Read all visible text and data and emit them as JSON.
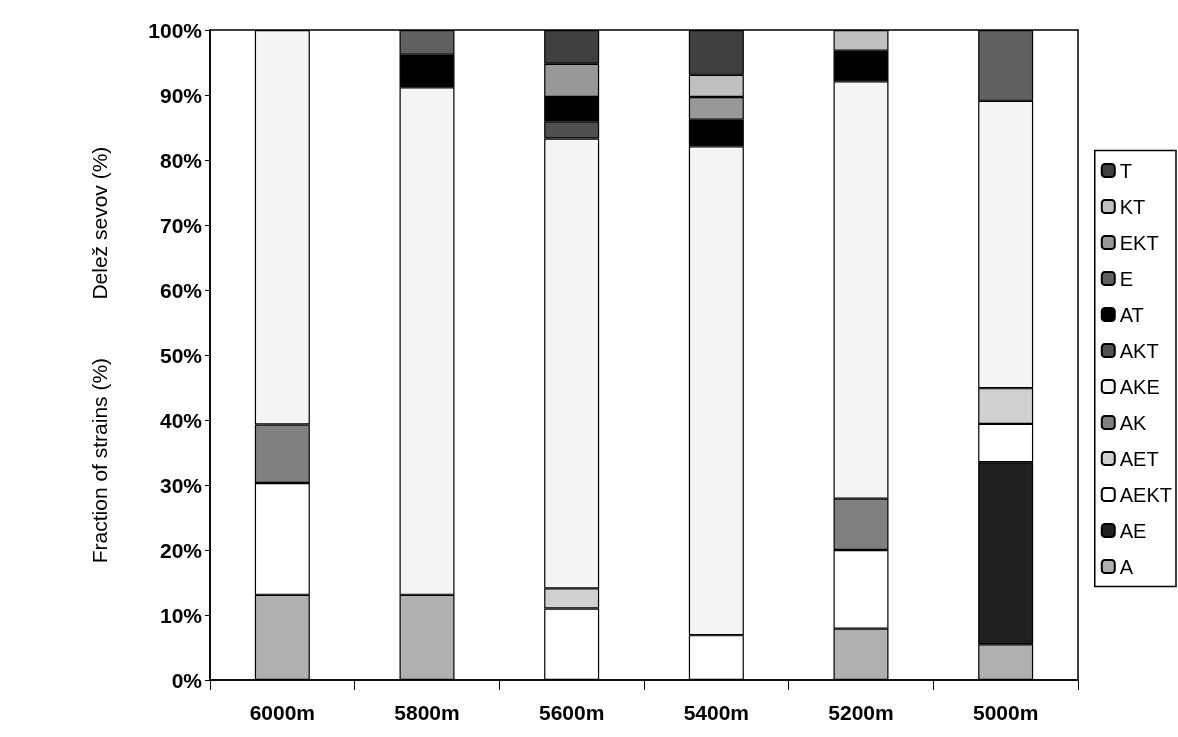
{
  "chart_data": {
    "type": "bar",
    "stacked": true,
    "ylabel": "Fraction of strains (%)          Delež sevov (%)",
    "categories": [
      "6000m",
      "5800m",
      "5600m",
      "5400m",
      "5200m",
      "5000m"
    ],
    "ylim": [
      0,
      100
    ],
    "yticks": [
      {
        "value": 0,
        "label": "0%"
      },
      {
        "value": 10,
        "label": "10%"
      },
      {
        "value": 20,
        "label": "20%"
      },
      {
        "value": 30,
        "label": "30%"
      },
      {
        "value": 40,
        "label": "40%"
      },
      {
        "value": 50,
        "label": "50%"
      },
      {
        "value": 60,
        "label": "60%"
      },
      {
        "value": 70,
        "label": "70%"
      },
      {
        "value": 80,
        "label": "80%"
      },
      {
        "value": 90,
        "label": "90%"
      },
      {
        "value": 100,
        "label": "100%"
      }
    ],
    "grid": false,
    "legend": "right",
    "series": [
      {
        "name": "A",
        "color": "#b0b0b0",
        "values": [
          13.1,
          13.1,
          null,
          null,
          7.9,
          5.5
        ]
      },
      {
        "name": "AE",
        "color": "#202020",
        "values": [
          null,
          null,
          null,
          null,
          null,
          28.0
        ]
      },
      {
        "name": "AEKT",
        "color": "#ffffff",
        "values": [
          17.2,
          null,
          11.0,
          6.9,
          12.1,
          5.9
        ]
      },
      {
        "name": "AET",
        "color": "#d0d0d0",
        "values": [
          null,
          null,
          3.1,
          null,
          null,
          5.5
        ]
      },
      {
        "name": "AK",
        "color": "#808080",
        "values": [
          9.0,
          null,
          null,
          null,
          7.9,
          null
        ]
      },
      {
        "name": "AKE",
        "color": "#f4f4f4",
        "values": [
          60.7,
          78.1,
          69.2,
          75.2,
          64.2,
          44.2
        ]
      },
      {
        "name": "AKT",
        "color": "#505050",
        "values": [
          null,
          null,
          2.6,
          null,
          null,
          null
        ]
      },
      {
        "name": "AT",
        "color": "#000000",
        "values": [
          null,
          5.0,
          3.8,
          4.1,
          4.7,
          null
        ]
      },
      {
        "name": "E",
        "color": "#606060",
        "values": [
          null,
          3.8,
          null,
          null,
          null,
          10.9
        ]
      },
      {
        "name": "EKT",
        "color": "#989898",
        "values": [
          null,
          null,
          5.1,
          3.5,
          null,
          null
        ]
      },
      {
        "name": "KT",
        "color": "#c0c0c0",
        "values": [
          null,
          null,
          null,
          3.4,
          3.2,
          null
        ]
      },
      {
        "name": "T",
        "color": "#404040",
        "values": [
          null,
          null,
          5.2,
          6.9,
          null,
          null
        ]
      }
    ]
  }
}
